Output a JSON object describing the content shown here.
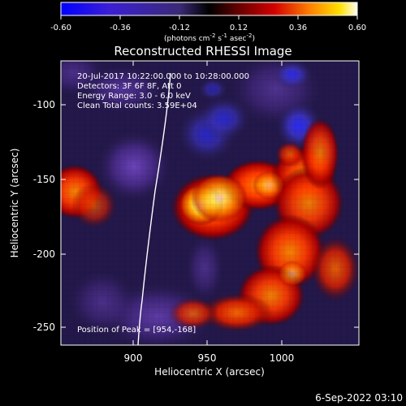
{
  "plot": {
    "title": "Reconstructed RHESSI Image",
    "footer_date": "6-Sep-2022 03:10",
    "colorbar": {
      "ticks": [
        "-0.60",
        "-0.36",
        "-0.12",
        "0.12",
        "0.36",
        "0.60"
      ],
      "unit_prefix": "(photons cm",
      "unit_exp1": "-2",
      "unit_mid1": " s",
      "unit_exp2": "-1",
      "unit_mid2": " asec",
      "unit_exp3": "-2",
      "unit_suffix": ")"
    },
    "info_lines": [
      "20-Jul-2017 10:22:00.000 to 10:28:00.000",
      "Detectors: 3F 6F 8F, Att 0",
      "Energy Range: 3.0 - 6.0 keV",
      "Clean     Total counts: 3.59E+04"
    ],
    "peak_text": "Position of Peak = [954,-168]",
    "x_label": "Heliocentric X (arcsec)",
    "y_label": "Heliocentric Y (arcsec)",
    "x_ticks": [
      "900",
      "950",
      "1000"
    ],
    "y_ticks": [
      "-100",
      "-150",
      "-200",
      "-250"
    ],
    "colors": {
      "background": "#000000",
      "text": "#ffffff",
      "limb": "#ffffff"
    }
  }
}
